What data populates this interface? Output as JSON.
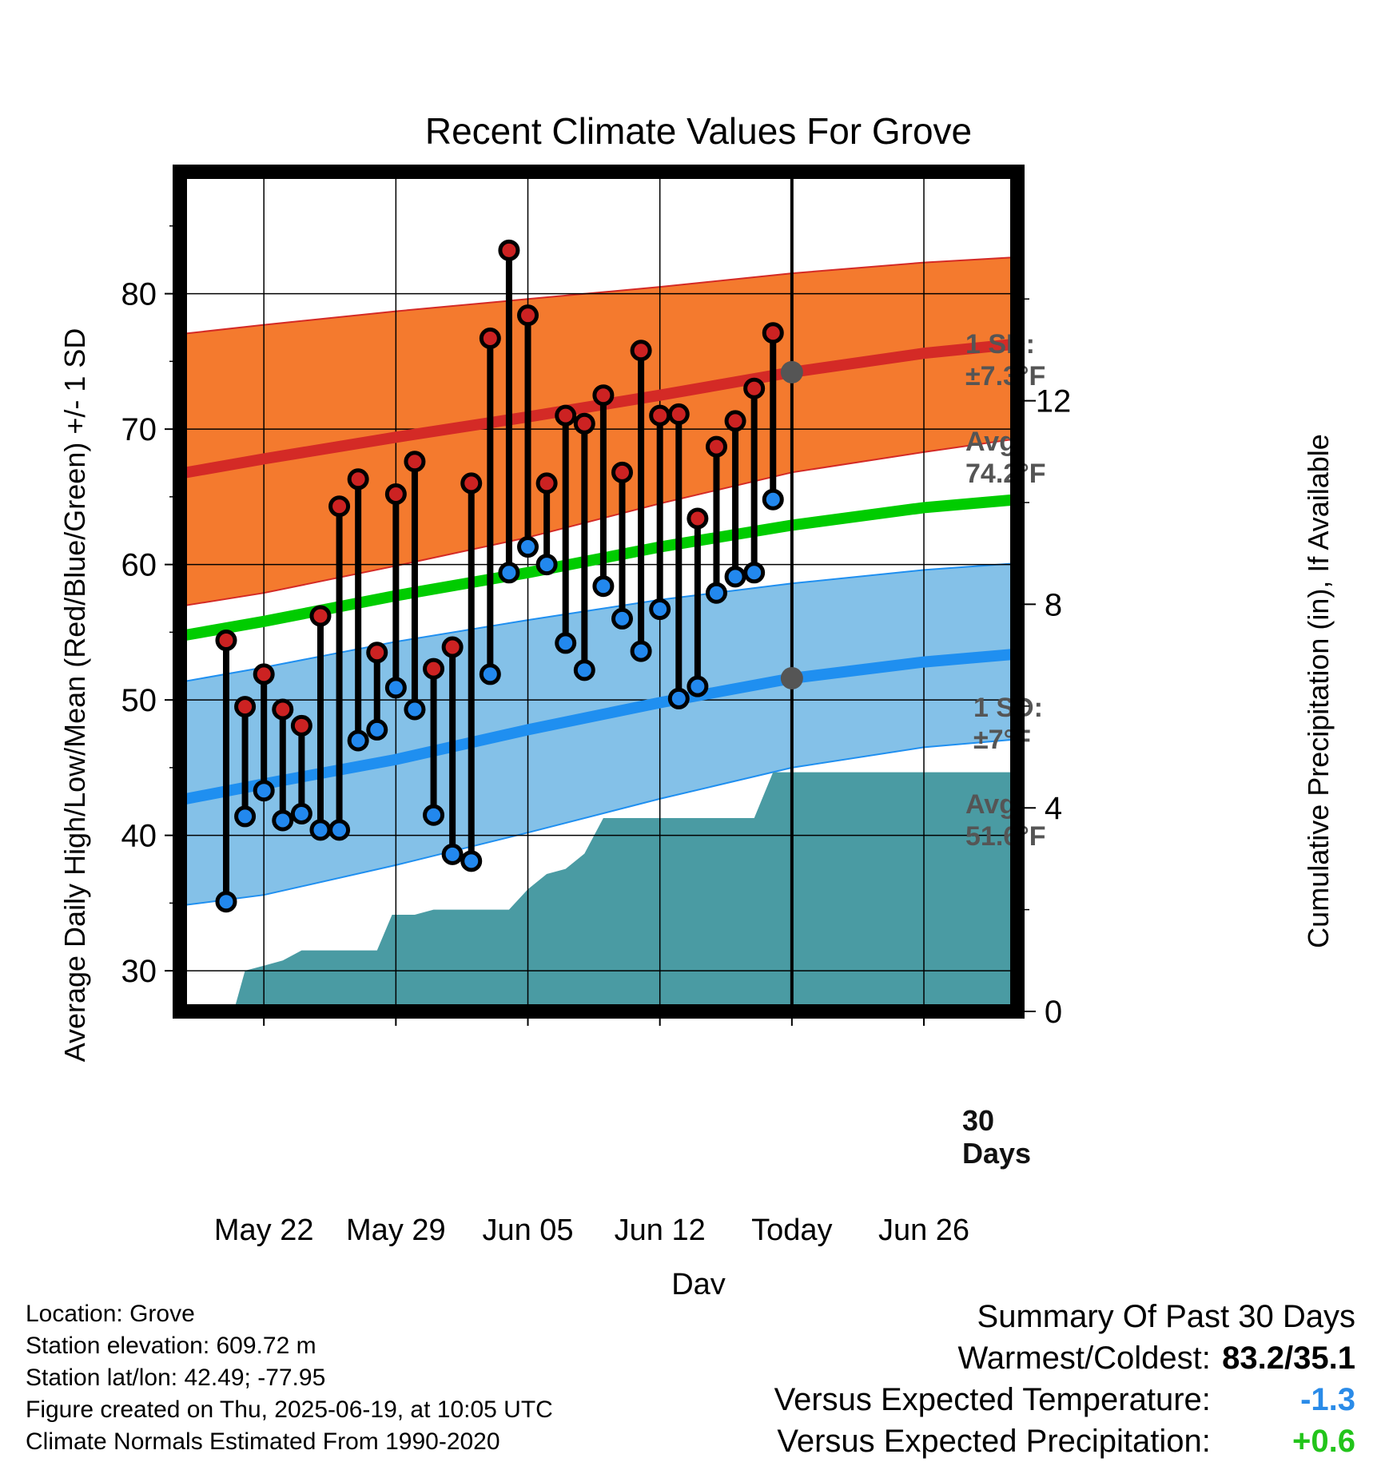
{
  "title": "Recent Climate Values For Grove",
  "y_axis_label": "Average Daily High/Low/Mean (Red/Blue/Green) +/- 1 SD",
  "y2_axis_label": "Cumulative Precipitation (in), If Available",
  "x_axis_label": "Day",
  "colors": {
    "high_band": "#f47a2e",
    "high_line": "#d42a26",
    "low_band": "#84c1e8",
    "low_line": "#1f8ff0",
    "mean_line": "#00cc00",
    "precip": "#4a9ba3",
    "high_dot": "#cc2222",
    "low_dot": "#2288ee",
    "marker": "#555555"
  },
  "annotations": {
    "high_sd_line1": "1 SD:",
    "high_sd_line2": "±7.3°F",
    "high_avg_line1": "Avg:",
    "high_avg_line2": "74.2°F",
    "low_sd_line1": "1 SD:",
    "low_sd_line2": "±7°F",
    "low_avg_line1": "Avg:",
    "low_avg_line2": "51.6°F",
    "days_line1": "30",
    "days_line2": "Days"
  },
  "chart_data": {
    "type": "line",
    "y_range": [
      27,
      89
    ],
    "y_ticks": [
      30,
      40,
      50,
      60,
      70,
      80
    ],
    "y2_range": [
      0,
      16.5
    ],
    "y2_ticks": [
      0,
      4,
      8,
      12
    ],
    "x_range": [
      -4.5,
      40
    ],
    "x_ticks": [
      {
        "day": 0,
        "label": "May 22"
      },
      {
        "day": 7,
        "label": "May 29"
      },
      {
        "day": 14,
        "label": "Jun 05"
      },
      {
        "day": 21,
        "label": "Jun 12"
      },
      {
        "day": 28,
        "label": "Today"
      },
      {
        "day": 35,
        "label": "Jun 26"
      }
    ],
    "today_day": 28,
    "normals": {
      "days": [
        -4.5,
        0,
        7,
        14,
        21,
        28,
        35,
        40
      ],
      "high_avg": [
        66.7,
        67.8,
        69.4,
        70.9,
        72.5,
        74.2,
        75.6,
        76.3
      ],
      "high_upper": [
        77.0,
        77.7,
        78.7,
        79.6,
        80.5,
        81.5,
        82.3,
        82.7
      ],
      "high_lower": [
        56.9,
        57.9,
        59.9,
        62.0,
        64.5,
        66.8,
        68.3,
        69.3
      ],
      "low_avg": [
        42.6,
        43.8,
        45.6,
        47.8,
        49.8,
        51.6,
        52.8,
        53.4
      ],
      "low_upper": [
        51.3,
        52.4,
        54.3,
        55.9,
        57.4,
        58.6,
        59.6,
        60.1
      ],
      "low_lower": [
        34.8,
        35.6,
        37.8,
        40.2,
        42.7,
        45.0,
        46.5,
        47.1
      ],
      "mean_avg": [
        54.7,
        55.8,
        57.7,
        59.4,
        61.3,
        62.9,
        64.2,
        64.8
      ]
    },
    "daily": {
      "days": [
        -2,
        -1,
        0,
        1,
        2,
        3,
        4,
        5,
        6,
        7,
        8,
        9,
        10,
        11,
        12,
        13,
        14,
        15,
        16,
        17,
        18,
        19,
        20,
        21,
        22,
        23,
        24,
        25,
        26,
        27
      ],
      "highs": [
        54.4,
        49.5,
        51.9,
        49.3,
        48.1,
        56.2,
        64.3,
        66.3,
        53.5,
        65.2,
        67.6,
        52.3,
        53.9,
        66.0,
        76.7,
        83.2,
        78.4,
        66.0,
        71.0,
        70.4,
        72.5,
        66.8,
        75.8,
        71.0,
        71.1,
        63.4,
        68.7,
        70.6,
        73.0,
        77.1
      ],
      "lows": [
        35.1,
        41.4,
        43.3,
        41.1,
        41.6,
        40.4,
        40.4,
        47.0,
        47.8,
        50.9,
        49.3,
        41.5,
        38.6,
        38.1,
        51.9,
        59.4,
        61.3,
        60.0,
        54.2,
        52.2,
        58.4,
        56.0,
        53.6,
        56.7,
        50.1,
        51.0,
        57.9,
        59.1,
        59.4,
        64.8
      ]
    },
    "precip_cumulative": {
      "days": [
        -4.5,
        -1.6,
        -1,
        0,
        1,
        2,
        3,
        4,
        5,
        6,
        6.8,
        7,
        8,
        9,
        10,
        11,
        12,
        13,
        14,
        15,
        16,
        17,
        18,
        19,
        20,
        21,
        22,
        23,
        24,
        25,
        26,
        27,
        28,
        40
      ],
      "values": [
        0,
        0,
        0.8,
        0.9,
        1.0,
        1.2,
        1.2,
        1.2,
        1.2,
        1.2,
        1.9,
        1.9,
        1.9,
        2.0,
        2.0,
        2.0,
        2.0,
        2.0,
        2.4,
        2.7,
        2.8,
        3.1,
        3.8,
        3.8,
        3.8,
        3.8,
        3.8,
        3.8,
        3.8,
        3.8,
        3.8,
        4.7,
        4.7,
        4.7
      ]
    }
  },
  "footer": {
    "location": "Location: Grove",
    "elevation": "Station elevation: 609.72 m",
    "latlon": "Station lat/lon: 42.49; -77.95",
    "created": "Figure created on Thu, 2025-06-19, at 10:05 UTC",
    "normals": "Climate Normals Estimated From 1990-2020"
  },
  "summary": {
    "title": "Summary Of Past 30 Days",
    "warmest_label": "Warmest/Coldest:",
    "warmest_value": "83.2/35.1",
    "temp_label": "Versus Expected Temperature:",
    "temp_value": "-1.3",
    "temp_color": "#2a8be8",
    "precip_label": "Versus Expected Precipitation:",
    "precip_value": "+0.6",
    "precip_color": "#22c41a"
  }
}
